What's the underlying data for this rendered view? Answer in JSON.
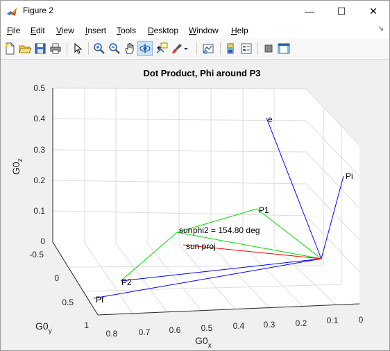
{
  "window": {
    "title": "Figure 2",
    "minimize_glyph": "—",
    "maximize_glyph": "☐",
    "close_glyph": "✕"
  },
  "menu": {
    "items": [
      {
        "mnemonic": "F",
        "rest": "ile"
      },
      {
        "mnemonic": "E",
        "rest": "dit"
      },
      {
        "mnemonic": "V",
        "rest": "iew"
      },
      {
        "mnemonic": "I",
        "rest": "nsert"
      },
      {
        "mnemonic": "T",
        "rest": "ools"
      },
      {
        "mnemonic": "D",
        "rest": "esktop"
      },
      {
        "mnemonic": "W",
        "rest": "indow"
      },
      {
        "mnemonic": "H",
        "rest": "elp"
      }
    ],
    "corner_glyph": "↘"
  },
  "toolbar": {
    "icons": [
      "new-figure-icon",
      "open-file-icon",
      "save-icon",
      "print-icon",
      "edit-plot-arrow-icon",
      "zoom-in-icon",
      "zoom-out-icon",
      "pan-hand-icon",
      "rotate-3d-icon",
      "data-cursor-icon",
      "brush-icon",
      "link-plot-icon",
      "colorbar-icon",
      "legend-icon",
      "hide-plot-tools-icon",
      "show-plot-tools-icon"
    ],
    "pressed": "rotate-3d-icon"
  },
  "plot": {
    "title": "Dot Product, Phi around P3",
    "xlabel_main": "G0",
    "xlabel_sub": "x",
    "ylabel_main": "G0",
    "ylabel_sub": "y",
    "zlabel_main": "G0",
    "zlabel_sub": "z",
    "x_ticks": [
      "0.8",
      "0.7",
      "0.6",
      "0.5",
      "0.4",
      "0.3",
      "0.2",
      "0.1",
      "0"
    ],
    "y_ticks": [
      "-0.5",
      "0",
      "0.5",
      "1"
    ],
    "z_ticks": [
      "0.5",
      "0.4",
      "0.3",
      "0.2",
      "0.1",
      "0"
    ],
    "annotations": {
      "e": "e",
      "pi": "Pi",
      "p1": "P1",
      "p2": "P2",
      "pf": "Pf",
      "sun": "sun",
      "phi2": "phi2 = 154.80 deg",
      "sun_proj": "sun proj"
    },
    "colors": {
      "blue": "#0000ff",
      "green": "#00dd00",
      "red": "#ff0000",
      "axes": "#262626",
      "grid": "#dcdcdc",
      "background": "#ffffff"
    }
  }
}
